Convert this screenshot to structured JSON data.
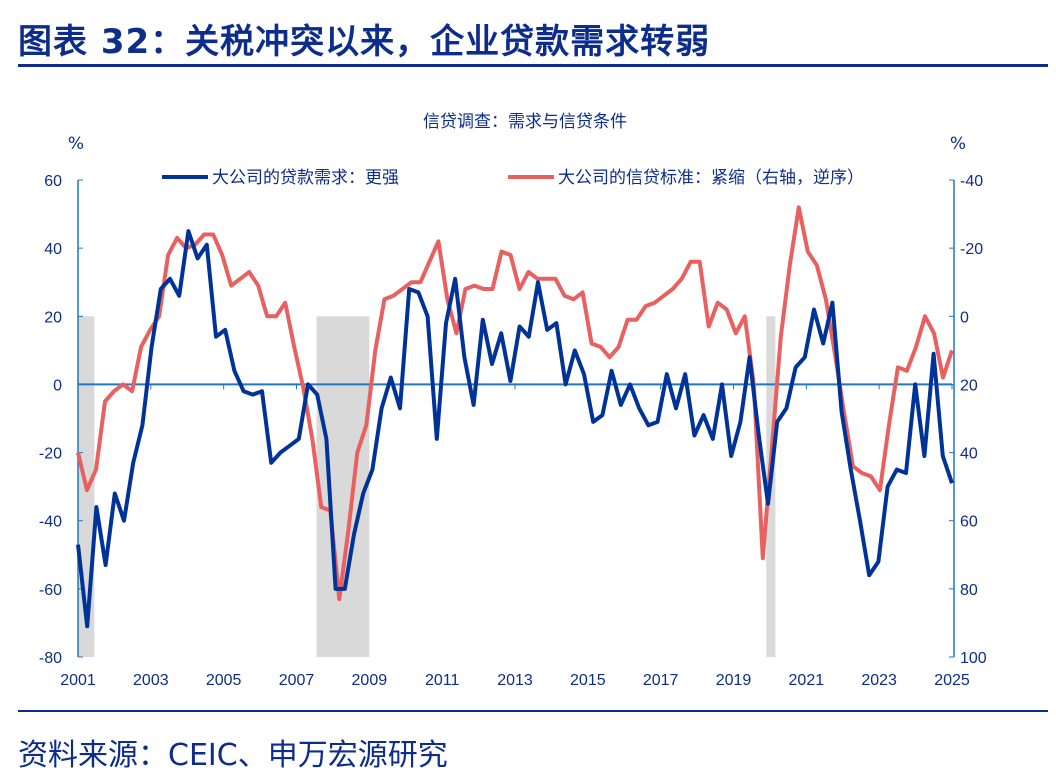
{
  "title": "图表 32：关税冲突以来，企业贷款需求转弱",
  "source": "资料来源：CEIC、申万宏源研究",
  "chart_data": {
    "type": "line",
    "title": "信贷调查：需求与信贷条件",
    "left_axis_unit": "%",
    "right_axis_unit": "%",
    "frequency": "quarterly",
    "x_range": [
      2001,
      2025
    ],
    "x_ticks": [
      "2001",
      "2003",
      "2005",
      "2007",
      "2009",
      "2011",
      "2013",
      "2015",
      "2017",
      "2019",
      "2021",
      "2023",
      "2025"
    ],
    "y_left": {
      "range": [
        -80,
        60
      ],
      "ticks": [
        "60",
        "40",
        "20",
        "0",
        "-20",
        "-40",
        "-60",
        "-80"
      ]
    },
    "y_right": {
      "range": [
        -40,
        100
      ],
      "reversed": true,
      "ticks": [
        "-40",
        "-20",
        "0",
        "20",
        "40",
        "60",
        "80",
        "100"
      ]
    },
    "grid": false,
    "legend_position": "top",
    "shaded_periods": [
      [
        2001.0,
        2001.45
      ],
      [
        2007.55,
        2009.0
      ],
      [
        2019.9,
        2020.15
      ]
    ],
    "shade_color": "#d9d9d9",
    "series": [
      {
        "name": "大公司的贷款需求：更强",
        "axis": "left",
        "color": "#003399",
        "values": [
          -47,
          -71,
          -36,
          -53,
          -32,
          -40,
          -23,
          -12,
          11,
          28,
          31,
          26,
          45,
          37,
          41,
          14,
          16,
          4,
          -2,
          -3,
          -2,
          -23,
          -20,
          -18,
          -16,
          0,
          -3,
          -16,
          -60,
          -60,
          -44,
          -32,
          -25,
          -7,
          2,
          -7,
          28,
          27,
          20,
          -16,
          18,
          31,
          8,
          -6,
          19,
          6,
          15,
          1,
          17,
          14,
          30,
          16,
          18,
          0,
          10,
          3,
          -11,
          -9,
          4,
          -6,
          0,
          -7,
          -12,
          -11,
          3,
          -7,
          3,
          -15,
          -9,
          -16,
          0,
          -21,
          -11,
          8,
          -15,
          -35,
          -11,
          -7,
          5,
          8,
          22,
          12,
          24,
          -8,
          -25,
          -40,
          -56,
          -52,
          -30,
          -25,
          -26,
          0,
          -21,
          9,
          -21,
          -29
        ]
      },
      {
        "name": "大公司的信贷标准：紧缩（右轴，逆序）",
        "axis": "right",
        "color": "#e8605f",
        "values": [
          40,
          51,
          45,
          25,
          22,
          20,
          22,
          9,
          4,
          0,
          -18,
          -23,
          -20,
          -21,
          -24,
          -24,
          -18,
          -9,
          -11,
          -13,
          -9,
          0,
          0,
          -4,
          9,
          21,
          36,
          56,
          57,
          83,
          63,
          40,
          32,
          10,
          -5,
          -6,
          -8,
          -10,
          -10,
          -16,
          -22,
          -5,
          5,
          -8,
          -9,
          -8,
          -8,
          -19,
          -18,
          -8,
          -13,
          -11,
          -11,
          -11,
          -6,
          -5,
          -7,
          8,
          9,
          12,
          9,
          1,
          1,
          -3,
          -4,
          -6,
          -8,
          -11,
          -16,
          -16,
          3,
          -4,
          -2,
          5,
          0,
          20,
          71,
          39,
          6,
          -15,
          -32,
          -19,
          -15,
          -5,
          11,
          28,
          44,
          46,
          47,
          51,
          32,
          15,
          16,
          9,
          0,
          5,
          18,
          10
        ]
      }
    ]
  }
}
